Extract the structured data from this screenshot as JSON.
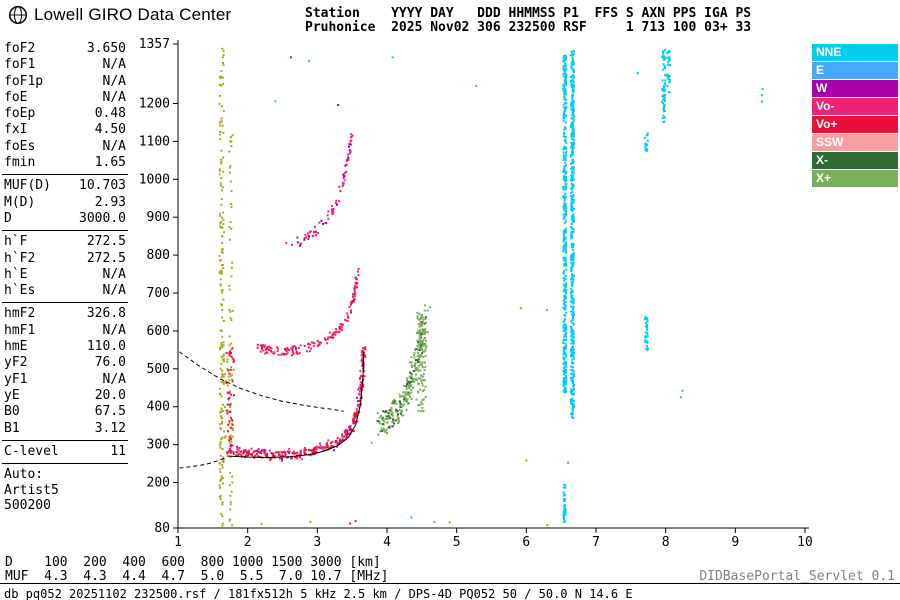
{
  "header": {
    "title": "Lowell GIRO Data Center",
    "station_line1": "Station    YYYY DAY   DDD HHMMSS P1  FFS S AXN PPS IGA PS",
    "station_line2": "Pruhonice  2025 Nov02 306 232500 RSF     1 713 100 03+ 33"
  },
  "sidebar": {
    "groups": [
      {
        "rows": [
          [
            "foF2",
            "3.650"
          ],
          [
            "foF1",
            "N/A"
          ],
          [
            "foF1p",
            "N/A"
          ],
          [
            "foE",
            "N/A"
          ],
          [
            "foEp",
            "0.48"
          ],
          [
            "fxI",
            "4.50"
          ],
          [
            "foEs",
            "N/A"
          ],
          [
            "fmin",
            "1.65"
          ]
        ]
      },
      {
        "rows": [
          [
            "MUF(D)",
            "10.703"
          ],
          [
            "M(D)",
            "2.93"
          ],
          [
            "D",
            "3000.0"
          ]
        ]
      },
      {
        "rows": [
          [
            "h`F",
            "272.5"
          ],
          [
            "h`F2",
            "272.5"
          ],
          [
            "h`E",
            "N/A"
          ],
          [
            "h`Es",
            "N/A"
          ]
        ]
      },
      {
        "rows": [
          [
            "hmF2",
            "326.8"
          ],
          [
            "hmF1",
            "N/A"
          ],
          [
            "hmE",
            "110.0"
          ],
          [
            "yF2",
            "76.0"
          ],
          [
            "yF1",
            "N/A"
          ],
          [
            "yE",
            "20.0"
          ],
          [
            "B0",
            "67.5"
          ],
          [
            "B1",
            "3.12"
          ]
        ]
      },
      {
        "rows": [
          [
            "C-level",
            "11"
          ]
        ]
      }
    ],
    "auto": [
      "Auto:",
      "Artist5",
      "500200"
    ]
  },
  "legend": {
    "items": [
      {
        "label": "NNE",
        "color": "#00CCEE"
      },
      {
        "label": "E",
        "color": "#44AAFF"
      },
      {
        "label": "W",
        "color": "#AA00AA"
      },
      {
        "label": "Vo-",
        "color": "#EE2277"
      },
      {
        "label": "Vo+",
        "color": "#E8113C"
      },
      {
        "label": "SSW",
        "color": "#F4A0A0"
      },
      {
        "label": "X-",
        "color": "#2F6B33"
      },
      {
        "label": "X+",
        "color": "#7BAE5A"
      }
    ]
  },
  "footer": {
    "d_line": "D    100  200  400  600  800 1000 1500 3000 [km]",
    "muf_line": "MUF  4.3  4.3  4.4  4.7  5.0  5.5  7.0 10.7 [MHz]",
    "servlet": "DIDBasePortal_Servlet 0.1",
    "status": "db pq052 20251102 232500.rsf / 181fx512h 5 kHz 2.5 km / DPS-4D PQ052 50 / 50.0 N 14.6 E"
  },
  "chart_data": {
    "type": "scatter",
    "title": "Pruhonice ionogram 2025 Nov02 306 232500",
    "xlabel": "[MHz]",
    "ylabel": "[km]",
    "axes": {
      "x_range": [
        1,
        10
      ],
      "y_range": [
        80,
        1357
      ],
      "x_ticks": [
        1,
        2,
        3,
        4,
        5,
        6,
        7,
        8,
        9,
        10
      ],
      "y_ticks": [
        80,
        200,
        300,
        400,
        500,
        600,
        700,
        800,
        900,
        1000,
        1100,
        1200,
        1357
      ]
    },
    "series": [
      {
        "name": "rfi-line-1.62",
        "type": "band",
        "color": "#A8A820",
        "f": [
          1.595,
          1.66
        ],
        "h": [
          85,
          1350
        ],
        "n": 150,
        "seed": 11
      },
      {
        "name": "rfi-line-1.76",
        "type": "band",
        "color": "#A8A820",
        "f": [
          1.735,
          1.79
        ],
        "h": [
          85,
          1150
        ],
        "n": 65,
        "seed": 12
      },
      {
        "name": "spread-f-low-olive",
        "type": "band",
        "color": "#A8A820",
        "f": [
          1.6,
          1.8
        ],
        "h": [
          290,
          560
        ],
        "n": 40,
        "seed": 13
      },
      {
        "name": "spread-f-low-red",
        "type": "band",
        "color": "#E8113C",
        "f": [
          1.69,
          1.81
        ],
        "h": [
          295,
          555
        ],
        "n": 45,
        "seed": 14
      },
      {
        "name": "f2-otrace-main",
        "type": "path",
        "color": "#E8113C",
        "n": 240,
        "seed": 15,
        "jf": 0.025,
        "jh": 9,
        "path": [
          [
            1.68,
            286
          ],
          [
            1.9,
            278
          ],
          [
            2.1,
            274
          ],
          [
            2.3,
            272
          ],
          [
            2.5,
            272
          ],
          [
            2.7,
            274
          ],
          [
            2.9,
            280
          ],
          [
            3.1,
            290
          ],
          [
            3.25,
            302
          ],
          [
            3.4,
            322
          ],
          [
            3.5,
            348
          ],
          [
            3.58,
            390
          ],
          [
            3.63,
            452
          ],
          [
            3.66,
            520
          ],
          [
            3.67,
            558
          ]
        ]
      },
      {
        "name": "f2-otrace-pink",
        "type": "path",
        "color": "#EE2277",
        "n": 90,
        "seed": 16,
        "jf": 0.03,
        "jh": 16,
        "path": [
          [
            1.68,
            286
          ],
          [
            1.9,
            278
          ],
          [
            2.1,
            274
          ],
          [
            2.3,
            272
          ],
          [
            2.5,
            272
          ],
          [
            2.7,
            274
          ],
          [
            2.9,
            280
          ],
          [
            3.1,
            290
          ],
          [
            3.25,
            302
          ],
          [
            3.4,
            322
          ],
          [
            3.5,
            348
          ],
          [
            3.58,
            390
          ],
          [
            3.63,
            452
          ],
          [
            3.66,
            520
          ],
          [
            3.67,
            558
          ]
        ]
      },
      {
        "name": "f2-otrace-magenta",
        "type": "path",
        "color": "#AA00AA",
        "n": 22,
        "seed": 17,
        "jf": 0.03,
        "jh": 20,
        "path": [
          [
            1.68,
            286
          ],
          [
            1.9,
            278
          ],
          [
            2.1,
            274
          ],
          [
            2.3,
            272
          ],
          [
            2.5,
            272
          ],
          [
            2.7,
            274
          ],
          [
            2.9,
            280
          ],
          [
            3.1,
            290
          ],
          [
            3.25,
            302
          ],
          [
            3.4,
            322
          ],
          [
            3.5,
            348
          ],
          [
            3.58,
            390
          ],
          [
            3.63,
            452
          ],
          [
            3.66,
            520
          ],
          [
            3.67,
            558
          ]
        ]
      },
      {
        "name": "f2-secondhop-pink",
        "type": "path",
        "color": "#EE2277",
        "n": 110,
        "seed": 18,
        "jf": 0.02,
        "jh": 12,
        "path": [
          [
            2.15,
            556
          ],
          [
            2.35,
            549
          ],
          [
            2.55,
            546
          ],
          [
            2.75,
            550
          ],
          [
            2.95,
            560
          ],
          [
            3.15,
            578
          ],
          [
            3.3,
            600
          ],
          [
            3.42,
            630
          ],
          [
            3.5,
            668
          ],
          [
            3.55,
            712
          ],
          [
            3.58,
            756
          ]
        ]
      },
      {
        "name": "f2-secondhop-red",
        "type": "path",
        "color": "#E8113C",
        "n": 45,
        "seed": 19,
        "jf": 0.02,
        "jh": 9,
        "path": [
          [
            2.15,
            556
          ],
          [
            2.35,
            549
          ],
          [
            2.55,
            546
          ],
          [
            2.75,
            550
          ],
          [
            2.95,
            560
          ],
          [
            3.15,
            578
          ],
          [
            3.3,
            600
          ],
          [
            3.42,
            630
          ],
          [
            3.5,
            668
          ],
          [
            3.55,
            712
          ],
          [
            3.58,
            756
          ]
        ]
      },
      {
        "name": "f2-thirdhop-pink",
        "type": "path",
        "color": "#EE2277",
        "n": 70,
        "seed": 20,
        "jf": 0.02,
        "jh": 13,
        "path": [
          [
            2.55,
            832
          ],
          [
            2.75,
            838
          ],
          [
            2.9,
            852
          ],
          [
            3.05,
            876
          ],
          [
            3.2,
            910
          ],
          [
            3.3,
            950
          ],
          [
            3.38,
            1000
          ],
          [
            3.45,
            1062
          ],
          [
            3.5,
            1130
          ]
        ]
      },
      {
        "name": "f2-thirdhop-magenta",
        "type": "path",
        "color": "#AA00AA",
        "n": 18,
        "seed": 21,
        "jf": 0.02,
        "jh": 16,
        "path": [
          [
            2.55,
            832
          ],
          [
            2.75,
            838
          ],
          [
            2.9,
            852
          ],
          [
            3.05,
            876
          ],
          [
            3.2,
            910
          ],
          [
            3.3,
            950
          ],
          [
            3.38,
            1000
          ],
          [
            3.45,
            1062
          ],
          [
            3.5,
            1130
          ]
        ]
      },
      {
        "name": "f2-xtrace-green",
        "type": "path",
        "color": "#7BAE5A",
        "n": 200,
        "seed": 22,
        "jf": 0.05,
        "jh": 38,
        "path": [
          [
            3.9,
            352
          ],
          [
            4.05,
            372
          ],
          [
            4.2,
            402
          ],
          [
            4.3,
            442
          ],
          [
            4.4,
            502
          ],
          [
            4.5,
            572
          ],
          [
            4.55,
            632
          ]
        ]
      },
      {
        "name": "f2-xtrace-darkgreen",
        "type": "path",
        "color": "#2F6B33",
        "n": 65,
        "seed": 23,
        "jf": 0.05,
        "jh": 30,
        "path": [
          [
            3.9,
            352
          ],
          [
            4.05,
            372
          ],
          [
            4.2,
            402
          ],
          [
            4.3,
            442
          ],
          [
            4.4,
            502
          ],
          [
            4.5,
            572
          ],
          [
            4.55,
            632
          ]
        ]
      },
      {
        "name": "xtrace-vline-green",
        "type": "band",
        "color": "#7BAE5A",
        "f": [
          4.42,
          4.56
        ],
        "h": [
          380,
          655
        ],
        "n": 85,
        "seed": 24
      },
      {
        "name": "rfi-cyan-6.55",
        "type": "band",
        "color": "#00CCEE",
        "f": [
          6.53,
          6.575
        ],
        "h": [
          430,
          1335
        ],
        "n": 430,
        "seed": 25
      },
      {
        "name": "rfi-cyan-6.66",
        "type": "band",
        "color": "#00CCEE",
        "f": [
          6.64,
          6.685
        ],
        "h": [
          370,
          1340
        ],
        "n": 470,
        "seed": 26
      },
      {
        "name": "rfi-cyan-6.55-low",
        "type": "band",
        "color": "#00CCEE",
        "f": [
          6.53,
          6.57
        ],
        "h": [
          95,
          205
        ],
        "n": 40,
        "seed": 27
      },
      {
        "name": "rfi-cyan-7.72a",
        "type": "band",
        "color": "#00CCEE",
        "f": [
          7.7,
          7.745
        ],
        "h": [
          545,
          640
        ],
        "n": 32,
        "seed": 28
      },
      {
        "name": "rfi-cyan-7.72b",
        "type": "band",
        "color": "#00CCEE",
        "f": [
          7.7,
          7.745
        ],
        "h": [
          1075,
          1130
        ],
        "n": 18,
        "seed": 29
      },
      {
        "name": "rfi-cyan-7.97",
        "type": "band",
        "color": "#00CCEE",
        "f": [
          7.95,
          7.995
        ],
        "h": [
          1150,
          1345
        ],
        "n": 60,
        "seed": 30
      },
      {
        "name": "rfi-cyan-8.04",
        "type": "band",
        "color": "#00CCEE",
        "f": [
          8.02,
          8.065
        ],
        "h": [
          1225,
          1340
        ],
        "n": 32,
        "seed": 31
      },
      {
        "name": "rfi-cyan-9.4",
        "type": "points",
        "color": "#00CCEE",
        "points": [
          [
            9.38,
            1205
          ],
          [
            9.38,
            1222
          ],
          [
            9.39,
            1238
          ]
        ]
      },
      {
        "name": "stray-blue",
        "type": "points",
        "color": "#44AAFF",
        "points": [
          [
            2.88,
            1312
          ],
          [
            4.08,
            1322
          ],
          [
            5.28,
            1246
          ],
          [
            8.22,
            425
          ],
          [
            8.24,
            442
          ],
          [
            6.3,
            655
          ],
          [
            2.4,
            1206
          ]
        ]
      },
      {
        "name": "stray-olive",
        "type": "points",
        "color": "#A8A820",
        "points": [
          [
            5.92,
            660
          ],
          [
            6.0,
            258
          ],
          [
            4.9,
            95
          ],
          [
            2.2,
            90
          ],
          [
            2.9,
            96
          ],
          [
            6.3,
            88
          ]
        ]
      },
      {
        "name": "stray-cyan",
        "type": "points",
        "color": "#00CCEE",
        "points": [
          [
            7.6,
            1280
          ],
          [
            6.6,
            252
          ],
          [
            4.35,
            108
          ]
        ]
      },
      {
        "name": "stray-red",
        "type": "points",
        "color": "#E8113C",
        "points": [
          [
            3.47,
            92
          ],
          [
            3.55,
            98
          ]
        ]
      },
      {
        "name": "stray-green",
        "type": "points",
        "color": "#7BAE5A",
        "points": [
          [
            4.62,
            662
          ],
          [
            4.0,
            330
          ],
          [
            4.68,
            96
          ],
          [
            3.78,
            305
          ]
        ]
      },
      {
        "name": "stray-magenta",
        "type": "points",
        "color": "#AA00AA",
        "points": [
          [
            2.62,
            1322
          ],
          [
            3.3,
            1196
          ]
        ]
      }
    ],
    "curves": [
      {
        "name": "artist-fitted-trace",
        "style": "solid",
        "points": [
          [
            1.7,
            270
          ],
          [
            2.0,
            267
          ],
          [
            2.3,
            266
          ],
          [
            2.6,
            268
          ],
          [
            2.9,
            274
          ],
          [
            3.1,
            283
          ],
          [
            3.3,
            298
          ],
          [
            3.45,
            320
          ],
          [
            3.55,
            352
          ],
          [
            3.62,
            405
          ],
          [
            3.655,
            480
          ],
          [
            3.665,
            545
          ]
        ]
      },
      {
        "name": "extrapolated-upper-dashed",
        "style": "dashed",
        "points": [
          [
            1.02,
            545
          ],
          [
            1.3,
            508
          ],
          [
            1.6,
            474
          ],
          [
            1.9,
            448
          ],
          [
            2.2,
            429
          ],
          [
            2.5,
            414
          ],
          [
            2.8,
            404
          ],
          [
            3.05,
            397
          ],
          [
            3.25,
            392
          ],
          [
            3.38,
            388
          ]
        ]
      },
      {
        "name": "extrapolated-lower-dashed",
        "style": "dashed",
        "points": [
          [
            1.02,
            238
          ],
          [
            1.2,
            242
          ],
          [
            1.4,
            248
          ],
          [
            1.55,
            256
          ],
          [
            1.68,
            265
          ]
        ]
      }
    ]
  }
}
